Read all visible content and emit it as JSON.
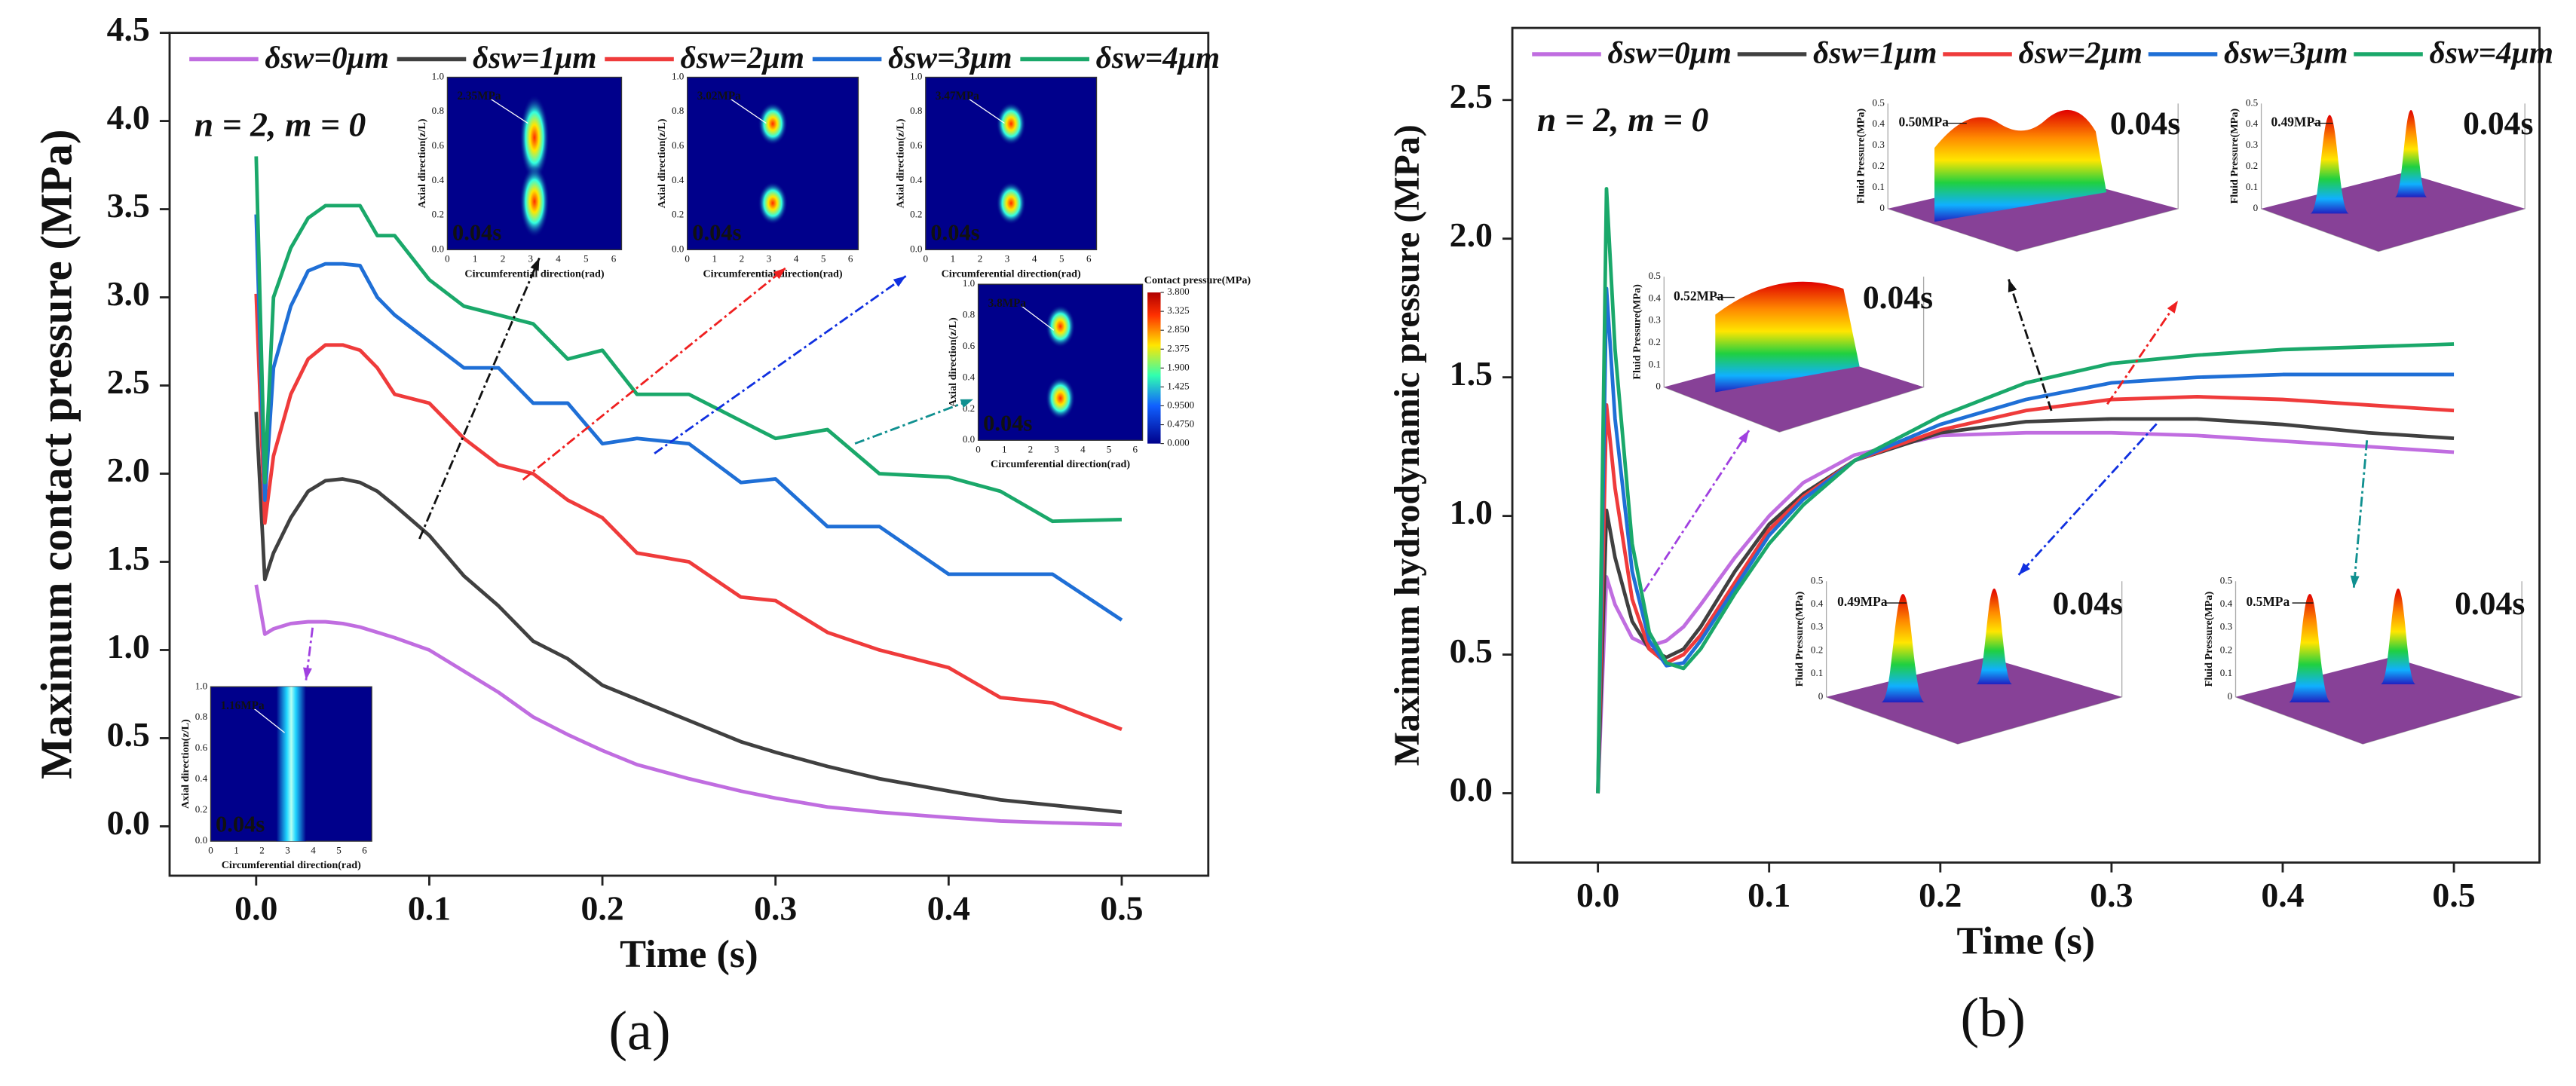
{
  "chart_data": [
    {
      "type": "line",
      "panel_label": "(a)",
      "annotation": "n = 2, m = 0",
      "x_label": "Time (s)",
      "y_label": "Maximum contact pressure (MPa)",
      "xlim": [
        -0.05,
        0.55
      ],
      "ylim": [
        -0.28,
        4.5
      ],
      "xticks": [
        {
          "value": 0,
          "label": "0.0"
        },
        0.1,
        0.2,
        0.3,
        0.4,
        0.5
      ],
      "yticks": [
        {
          "value": 0,
          "label": "0.0"
        },
        0.5,
        {
          "value": 1,
          "label": "1.0"
        },
        1.5,
        {
          "value": 2,
          "label": "2.0"
        },
        2.5,
        {
          "value": 3,
          "label": "3.0"
        },
        3.5,
        {
          "value": 4,
          "label": "4.0"
        },
        4.5
      ],
      "legend": "top",
      "x": [
        0,
        0.005,
        0.01,
        0.02,
        0.03,
        0.04,
        0.05,
        0.06,
        0.07,
        0.08,
        0.1,
        0.12,
        0.14,
        0.16,
        0.18,
        0.2,
        0.22,
        0.25,
        0.28,
        0.3,
        0.33,
        0.36,
        0.4,
        0.43,
        0.46,
        0.5
      ],
      "series": [
        {
          "name": "δsw=0μm",
          "color": "#c06de0",
          "values": [
            1.37,
            1.09,
            1.12,
            1.15,
            1.16,
            1.16,
            1.15,
            1.13,
            1.1,
            1.07,
            1.0,
            0.88,
            0.76,
            0.62,
            0.52,
            0.43,
            0.35,
            0.27,
            0.2,
            0.16,
            0.11,
            0.08,
            0.05,
            0.03,
            0.02,
            0.01
          ]
        },
        {
          "name": "δsw=1μm",
          "color": "#404040",
          "values": [
            2.35,
            1.4,
            1.55,
            1.75,
            1.9,
            1.96,
            1.97,
            1.95,
            1.9,
            1.82,
            1.65,
            1.42,
            1.25,
            1.05,
            0.95,
            0.8,
            0.72,
            0.6,
            0.48,
            0.42,
            0.34,
            0.27,
            0.2,
            0.15,
            0.12,
            0.08
          ]
        },
        {
          "name": "δsw=2μm",
          "color": "#ef3b3b",
          "values": [
            3.02,
            1.72,
            2.1,
            2.45,
            2.65,
            2.73,
            2.73,
            2.7,
            2.6,
            2.45,
            2.4,
            2.2,
            2.05,
            2.0,
            1.85,
            1.75,
            1.55,
            1.5,
            1.3,
            1.28,
            1.1,
            1.0,
            0.9,
            0.73,
            0.7,
            0.55
          ]
        },
        {
          "name": "δsw=3μm",
          "color": "#1f6fd6",
          "values": [
            3.47,
            1.85,
            2.6,
            2.95,
            3.15,
            3.19,
            3.19,
            3.18,
            3.0,
            2.9,
            2.75,
            2.6,
            2.6,
            2.4,
            2.4,
            2.17,
            2.2,
            2.17,
            1.95,
            1.97,
            1.7,
            1.7,
            1.43,
            1.43,
            1.43,
            1.17
          ]
        },
        {
          "name": "δsw=4μm",
          "color": "#1aa86a",
          "values": [
            3.8,
            1.95,
            3.0,
            3.28,
            3.45,
            3.52,
            3.52,
            3.52,
            3.35,
            3.35,
            3.1,
            2.95,
            2.9,
            2.85,
            2.65,
            2.7,
            2.45,
            2.45,
            2.3,
            2.2,
            2.25,
            2.0,
            1.98,
            1.9,
            1.73,
            1.74
          ]
        }
      ],
      "inset_x_label": "Circumferential direction(rad)",
      "inset_y_label": "Axial direction(z/L)",
      "inset_xticks": [
        0,
        1,
        2,
        3,
        4,
        5,
        6
      ],
      "inset_yticks": [
        {
          "value": 0,
          "label": "0.0"
        },
        0.2,
        0.4,
        0.6,
        0.8,
        {
          "value": 1,
          "label": "1.0"
        }
      ],
      "insets": [
        {
          "pressure_label": "2.35MPa",
          "time": "0.04s"
        },
        {
          "pressure_label": "3.02MPa",
          "time": "0.04s"
        },
        {
          "pressure_label": "3.47MPa",
          "time": "0.04s"
        },
        {
          "pressure_label": "3.8MPa",
          "time": "0.04s"
        },
        {
          "pressure_label": "1.16MPa",
          "time": "0.04s"
        }
      ],
      "colorbar": {
        "title": "Contact pressure(MPa)",
        "ticks": [
          {
            "value": 3.8,
            "label": "3.800"
          },
          {
            "value": 3.325,
            "label": "3.325"
          },
          {
            "value": 2.85,
            "label": "2.850"
          },
          {
            "value": 2.375,
            "label": "2.375"
          },
          {
            "value": 1.9,
            "label": "1.900"
          },
          {
            "value": 1.425,
            "label": "1.425"
          },
          {
            "value": 0.95,
            "label": "0.9500"
          },
          {
            "value": 0.475,
            "label": "0.4750"
          },
          {
            "value": 0,
            "label": "0.000"
          }
        ]
      }
    },
    {
      "type": "line",
      "panel_label": "(b)",
      "annotation": "n = 2, m = 0",
      "x_label": "Time (s)",
      "y_label": "Maximum hydrodynamic pressure (MPa)",
      "xlim": [
        -0.05,
        0.55
      ],
      "ylim": [
        -0.25,
        2.76
      ],
      "xticks": [
        {
          "value": 0,
          "label": "0.0"
        },
        0.1,
        0.2,
        0.3,
        0.4,
        0.5
      ],
      "yticks": [
        {
          "value": 0,
          "label": "0.0"
        },
        0.5,
        {
          "value": 1,
          "label": "1.0"
        },
        1.5,
        {
          "value": 2,
          "label": "2.0"
        },
        2.5
      ],
      "legend": "top",
      "x": [
        0,
        0.005,
        0.01,
        0.02,
        0.03,
        0.04,
        0.05,
        0.06,
        0.08,
        0.1,
        0.12,
        0.15,
        0.2,
        0.25,
        0.3,
        0.35,
        0.4,
        0.45,
        0.5
      ],
      "series": [
        {
          "name": "δsw=0μm",
          "color": "#c06de0",
          "values": [
            0,
            0.78,
            0.68,
            0.56,
            0.53,
            0.55,
            0.6,
            0.68,
            0.85,
            1.0,
            1.12,
            1.22,
            1.29,
            1.3,
            1.3,
            1.29,
            1.27,
            1.25,
            1.23
          ]
        },
        {
          "name": "δsw=1μm",
          "color": "#404040",
          "values": [
            0,
            1.02,
            0.85,
            0.62,
            0.52,
            0.49,
            0.52,
            0.6,
            0.8,
            0.97,
            1.08,
            1.2,
            1.3,
            1.34,
            1.35,
            1.35,
            1.33,
            1.3,
            1.28
          ]
        },
        {
          "name": "δsw=2μm",
          "color": "#ef3b3b",
          "values": [
            0,
            1.4,
            1.1,
            0.7,
            0.52,
            0.47,
            0.5,
            0.57,
            0.76,
            0.95,
            1.07,
            1.2,
            1.31,
            1.38,
            1.42,
            1.43,
            1.42,
            1.4,
            1.38
          ]
        },
        {
          "name": "δsw=3μm",
          "color": "#1f6fd6",
          "values": [
            0,
            1.82,
            1.35,
            0.8,
            0.55,
            0.46,
            0.47,
            0.55,
            0.74,
            0.93,
            1.06,
            1.2,
            1.33,
            1.42,
            1.48,
            1.5,
            1.51,
            1.51,
            1.51
          ]
        },
        {
          "name": "δsw=4μm",
          "color": "#1aa86a",
          "values": [
            0,
            2.18,
            1.6,
            0.9,
            0.58,
            0.47,
            0.45,
            0.52,
            0.72,
            0.9,
            1.04,
            1.2,
            1.36,
            1.48,
            1.55,
            1.58,
            1.6,
            1.61,
            1.62
          ]
        }
      ],
      "inset_z_label": "Fluid Pressure(MPa)",
      "inset_zticks": [
        0,
        0.1,
        0.2,
        0.3,
        0.4,
        0.5
      ],
      "insets": [
        {
          "pressure_label": "0.50MPa",
          "time": "0.04s"
        },
        {
          "pressure_label": "0.49MPa",
          "time": "0.04s"
        },
        {
          "pressure_label": "0.52MPa",
          "time": "0.04s"
        },
        {
          "pressure_label": "0.49MPa",
          "time": "0.04s"
        },
        {
          "pressure_label": "0.5MPa",
          "time": "0.04s"
        }
      ]
    }
  ]
}
